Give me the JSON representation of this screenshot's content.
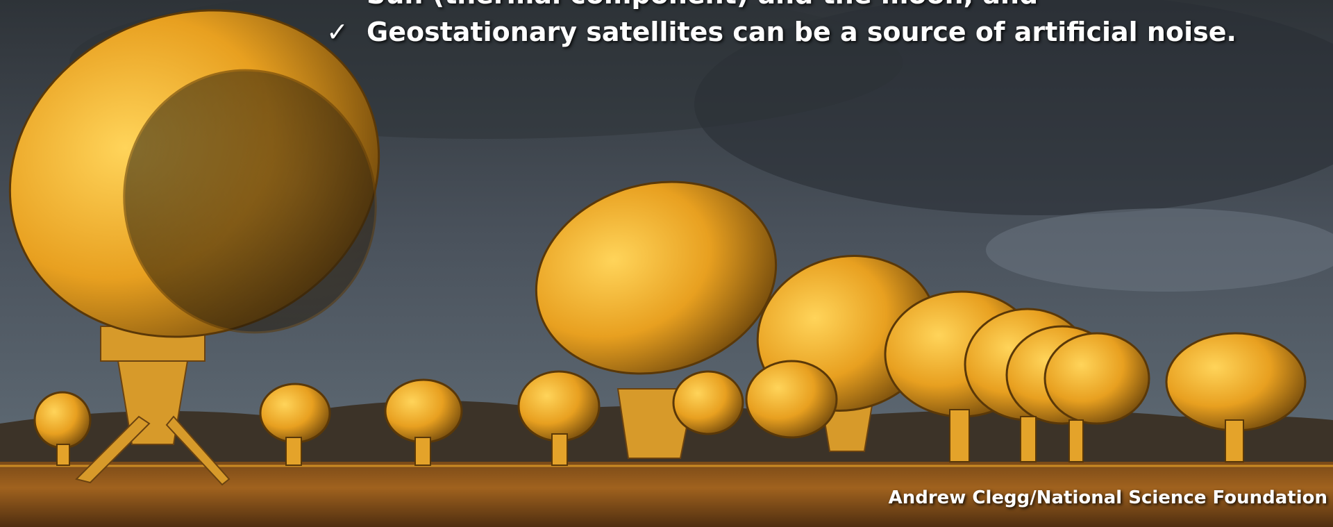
{
  "slide": {
    "bullets": [
      {
        "text": "Sun (thermal component) and the moon, and"
      },
      {
        "marker": "✓",
        "text": "Geostationary satellites can be a source of artificial noise."
      }
    ],
    "credit": "Andrew Clegg/National Science Foundation"
  }
}
